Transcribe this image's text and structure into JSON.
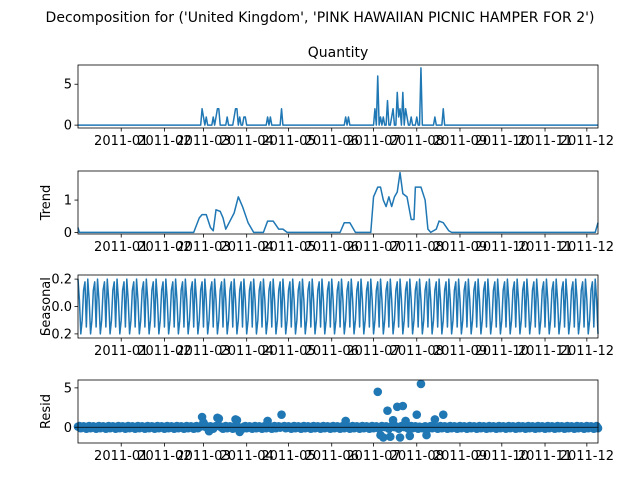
{
  "suptitle": "Decomposition for ('United Kingdom', 'PINK HAWAIIAN PICNIC HAMPER FOR 2')",
  "chart_data": [
    {
      "type": "line",
      "title": "Quantity",
      "ylabel": "",
      "xlim": [
        "2010-12-01",
        "2011-12-09"
      ],
      "ylim": [
        -0.35,
        7.35
      ],
      "yticks": [
        0,
        5
      ],
      "xtick_labels": [
        "2011-01",
        "2011-02",
        "2011-03",
        "2011-04",
        "2011-05",
        "2011-06",
        "2011-07",
        "2011-08",
        "2011-09",
        "2011-10",
        "2011-11",
        "2011-12"
      ],
      "baseline": 0,
      "points": [
        [
          "2011-02-28",
          2
        ],
        [
          "2011-03-01",
          1
        ],
        [
          "2011-03-03",
          1
        ],
        [
          "2011-03-08",
          1
        ],
        [
          "2011-03-10",
          1
        ],
        [
          "2011-03-11",
          2
        ],
        [
          "2011-03-12",
          2
        ],
        [
          "2011-03-18",
          1
        ],
        [
          "2011-03-23",
          1
        ],
        [
          "2011-03-24",
          2
        ],
        [
          "2011-03-25",
          2
        ],
        [
          "2011-03-27",
          1
        ],
        [
          "2011-03-30",
          1
        ],
        [
          "2011-03-31",
          1
        ],
        [
          "2011-04-16",
          1
        ],
        [
          "2011-04-18",
          1
        ],
        [
          "2011-04-26",
          2
        ],
        [
          "2011-06-11",
          1
        ],
        [
          "2011-06-13",
          1
        ],
        [
          "2011-07-02",
          2
        ],
        [
          "2011-07-04",
          6
        ],
        [
          "2011-07-06",
          1
        ],
        [
          "2011-07-08",
          1
        ],
        [
          "2011-07-11",
          3
        ],
        [
          "2011-07-14",
          1
        ],
        [
          "2011-07-15",
          2
        ],
        [
          "2011-07-18",
          4
        ],
        [
          "2011-07-19",
          1
        ],
        [
          "2011-07-20",
          2
        ],
        [
          "2011-07-22",
          4
        ],
        [
          "2011-07-24",
          2
        ],
        [
          "2011-07-25",
          1
        ],
        [
          "2011-07-28",
          1
        ],
        [
          "2011-08-01",
          1
        ],
        [
          "2011-08-04",
          7
        ],
        [
          "2011-08-14",
          1
        ],
        [
          "2011-08-20",
          2
        ]
      ]
    },
    {
      "type": "line",
      "title": "",
      "ylabel": "Trend",
      "xlim": [
        "2010-12-01",
        "2011-12-09"
      ],
      "ylim": [
        -0.05,
        1.9
      ],
      "yticks": [
        0,
        1
      ],
      "xtick_labels": [
        "2011-01",
        "2011-02",
        "2011-03",
        "2011-04",
        "2011-05",
        "2011-06",
        "2011-07",
        "2011-08",
        "2011-09",
        "2011-10",
        "2011-11",
        "2011-12"
      ],
      "points": [
        [
          "2010-12-01",
          0.15
        ],
        [
          "2010-12-02",
          0.0
        ],
        [
          "2011-02-22",
          0.0
        ],
        [
          "2011-02-26",
          0.45
        ],
        [
          "2011-02-28",
          0.55
        ],
        [
          "2011-03-03",
          0.55
        ],
        [
          "2011-03-06",
          0.15
        ],
        [
          "2011-03-08",
          0.05
        ],
        [
          "2011-03-10",
          0.7
        ],
        [
          "2011-03-13",
          0.65
        ],
        [
          "2011-03-15",
          0.45
        ],
        [
          "2011-03-17",
          0.1
        ],
        [
          "2011-03-20",
          0.35
        ],
        [
          "2011-03-23",
          0.6
        ],
        [
          "2011-03-26",
          1.1
        ],
        [
          "2011-03-29",
          0.8
        ],
        [
          "2011-04-02",
          0.3
        ],
        [
          "2011-04-06",
          0.0
        ],
        [
          "2011-04-13",
          0.0
        ],
        [
          "2011-04-16",
          0.35
        ],
        [
          "2011-04-20",
          0.35
        ],
        [
          "2011-04-24",
          0.1
        ],
        [
          "2011-04-27",
          0.1
        ],
        [
          "2011-04-30",
          0.0
        ],
        [
          "2011-06-07",
          0.0
        ],
        [
          "2011-06-10",
          0.3
        ],
        [
          "2011-06-14",
          0.3
        ],
        [
          "2011-06-18",
          0.0
        ],
        [
          "2011-06-29",
          0.0
        ],
        [
          "2011-07-01",
          1.1
        ],
        [
          "2011-07-04",
          1.4
        ],
        [
          "2011-07-06",
          1.4
        ],
        [
          "2011-07-08",
          1.0
        ],
        [
          "2011-07-10",
          0.8
        ],
        [
          "2011-07-12",
          1.1
        ],
        [
          "2011-07-14",
          0.8
        ],
        [
          "2011-07-16",
          1.1
        ],
        [
          "2011-07-18",
          1.25
        ],
        [
          "2011-07-20",
          1.85
        ],
        [
          "2011-07-22",
          1.2
        ],
        [
          "2011-07-25",
          1.1
        ],
        [
          "2011-07-28",
          0.4
        ],
        [
          "2011-07-30",
          0.4
        ],
        [
          "2011-07-31",
          1.4
        ],
        [
          "2011-08-04",
          1.4
        ],
        [
          "2011-08-07",
          1.0
        ],
        [
          "2011-08-09",
          0.1
        ],
        [
          "2011-08-11",
          0.0
        ],
        [
          "2011-08-15",
          0.1
        ],
        [
          "2011-08-17",
          0.35
        ],
        [
          "2011-08-20",
          0.3
        ],
        [
          "2011-08-24",
          0.05
        ],
        [
          "2011-08-26",
          0.0
        ],
        [
          "2011-12-07",
          0.0
        ],
        [
          "2011-12-09",
          0.3
        ]
      ]
    },
    {
      "type": "line",
      "title": "",
      "ylabel": "Seasonal",
      "xlim": [
        "2010-12-01",
        "2011-12-09"
      ],
      "ylim": [
        -0.23,
        0.23
      ],
      "yticks": [
        0.2,
        0.0,
        -0.2
      ],
      "ytick_labels": [
        "0.2",
        "0.0",
        "−0.2"
      ],
      "xtick_labels": [
        "2011-01",
        "2011-02",
        "2011-03",
        "2011-04",
        "2011-05",
        "2011-06",
        "2011-07",
        "2011-08",
        "2011-09",
        "2011-10",
        "2011-11",
        "2011-12"
      ],
      "period_days": 7,
      "pattern": [
        0.2,
        0.05,
        -0.2,
        -0.1,
        0.12,
        0.18,
        -0.15
      ]
    },
    {
      "type": "scatter",
      "title": "",
      "ylabel": "Resid",
      "xlim": [
        "2010-12-01",
        "2011-12-09"
      ],
      "ylim": [
        -2.0,
        6.0
      ],
      "yticks": [
        0,
        5
      ],
      "xtick_labels": [
        "2011-01",
        "2011-02",
        "2011-03",
        "2011-04",
        "2011-05",
        "2011-06",
        "2011-07",
        "2011-08",
        "2011-09",
        "2011-10",
        "2011-11",
        "2011-12"
      ],
      "baseline": 0,
      "points": [
        [
          "2011-02-28",
          1.3
        ],
        [
          "2011-03-01",
          0.6
        ],
        [
          "2011-03-05",
          -0.5
        ],
        [
          "2011-03-11",
          1.2
        ],
        [
          "2011-03-12",
          1.1
        ],
        [
          "2011-03-24",
          1.0
        ],
        [
          "2011-03-25",
          0.9
        ],
        [
          "2011-03-27",
          -0.6
        ],
        [
          "2011-04-16",
          0.8
        ],
        [
          "2011-04-26",
          1.6
        ],
        [
          "2011-06-11",
          0.8
        ],
        [
          "2011-07-04",
          4.5
        ],
        [
          "2011-07-06",
          -1.0
        ],
        [
          "2011-07-08",
          -1.3
        ],
        [
          "2011-07-11",
          2.1
        ],
        [
          "2011-07-13",
          -1.2
        ],
        [
          "2011-07-15",
          0.9
        ],
        [
          "2011-07-18",
          2.6
        ],
        [
          "2011-07-20",
          -1.3
        ],
        [
          "2011-07-22",
          2.7
        ],
        [
          "2011-07-24",
          0.8
        ],
        [
          "2011-07-27",
          -1.1
        ],
        [
          "2011-08-01",
          1.6
        ],
        [
          "2011-08-04",
          5.5
        ],
        [
          "2011-08-08",
          -1.0
        ],
        [
          "2011-08-14",
          1.0
        ],
        [
          "2011-08-20",
          1.6
        ]
      ]
    }
  ]
}
